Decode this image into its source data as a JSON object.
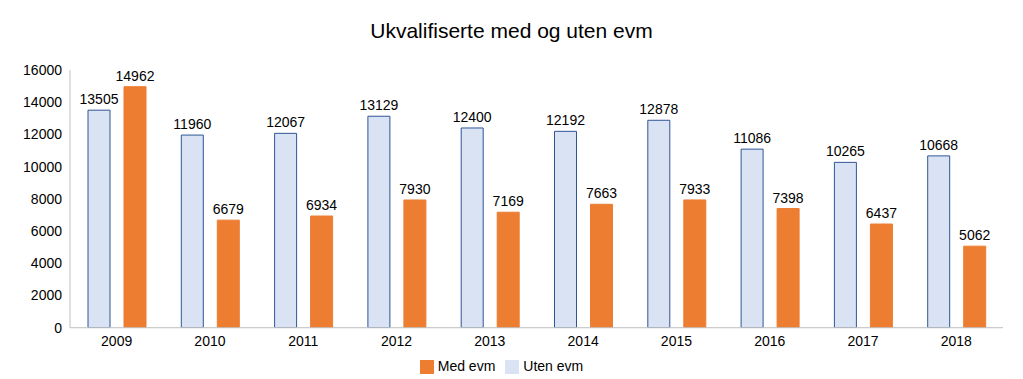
{
  "chart_data": {
    "type": "bar",
    "title": "Ukvalifiserte med og uten evm",
    "categories": [
      "2009",
      "2010",
      "2011",
      "2012",
      "2013",
      "2014",
      "2015",
      "2016",
      "2017",
      "2018"
    ],
    "series": [
      {
        "name": "Uten evm",
        "color": "#dae3f3",
        "values": [
          13505,
          11960,
          12067,
          13129,
          12400,
          12192,
          12878,
          11086,
          10265,
          10668
        ]
      },
      {
        "name": "Med evm",
        "color": "#ed7d31",
        "values": [
          14962,
          6679,
          6934,
          7930,
          7169,
          7663,
          7933,
          7398,
          6437,
          5062
        ]
      }
    ],
    "ylim": [
      0,
      16000
    ],
    "yticks": [
      0,
      2000,
      4000,
      6000,
      8000,
      10000,
      12000,
      14000,
      16000
    ],
    "grid": false,
    "legend": "bottom",
    "data_labels": true
  }
}
